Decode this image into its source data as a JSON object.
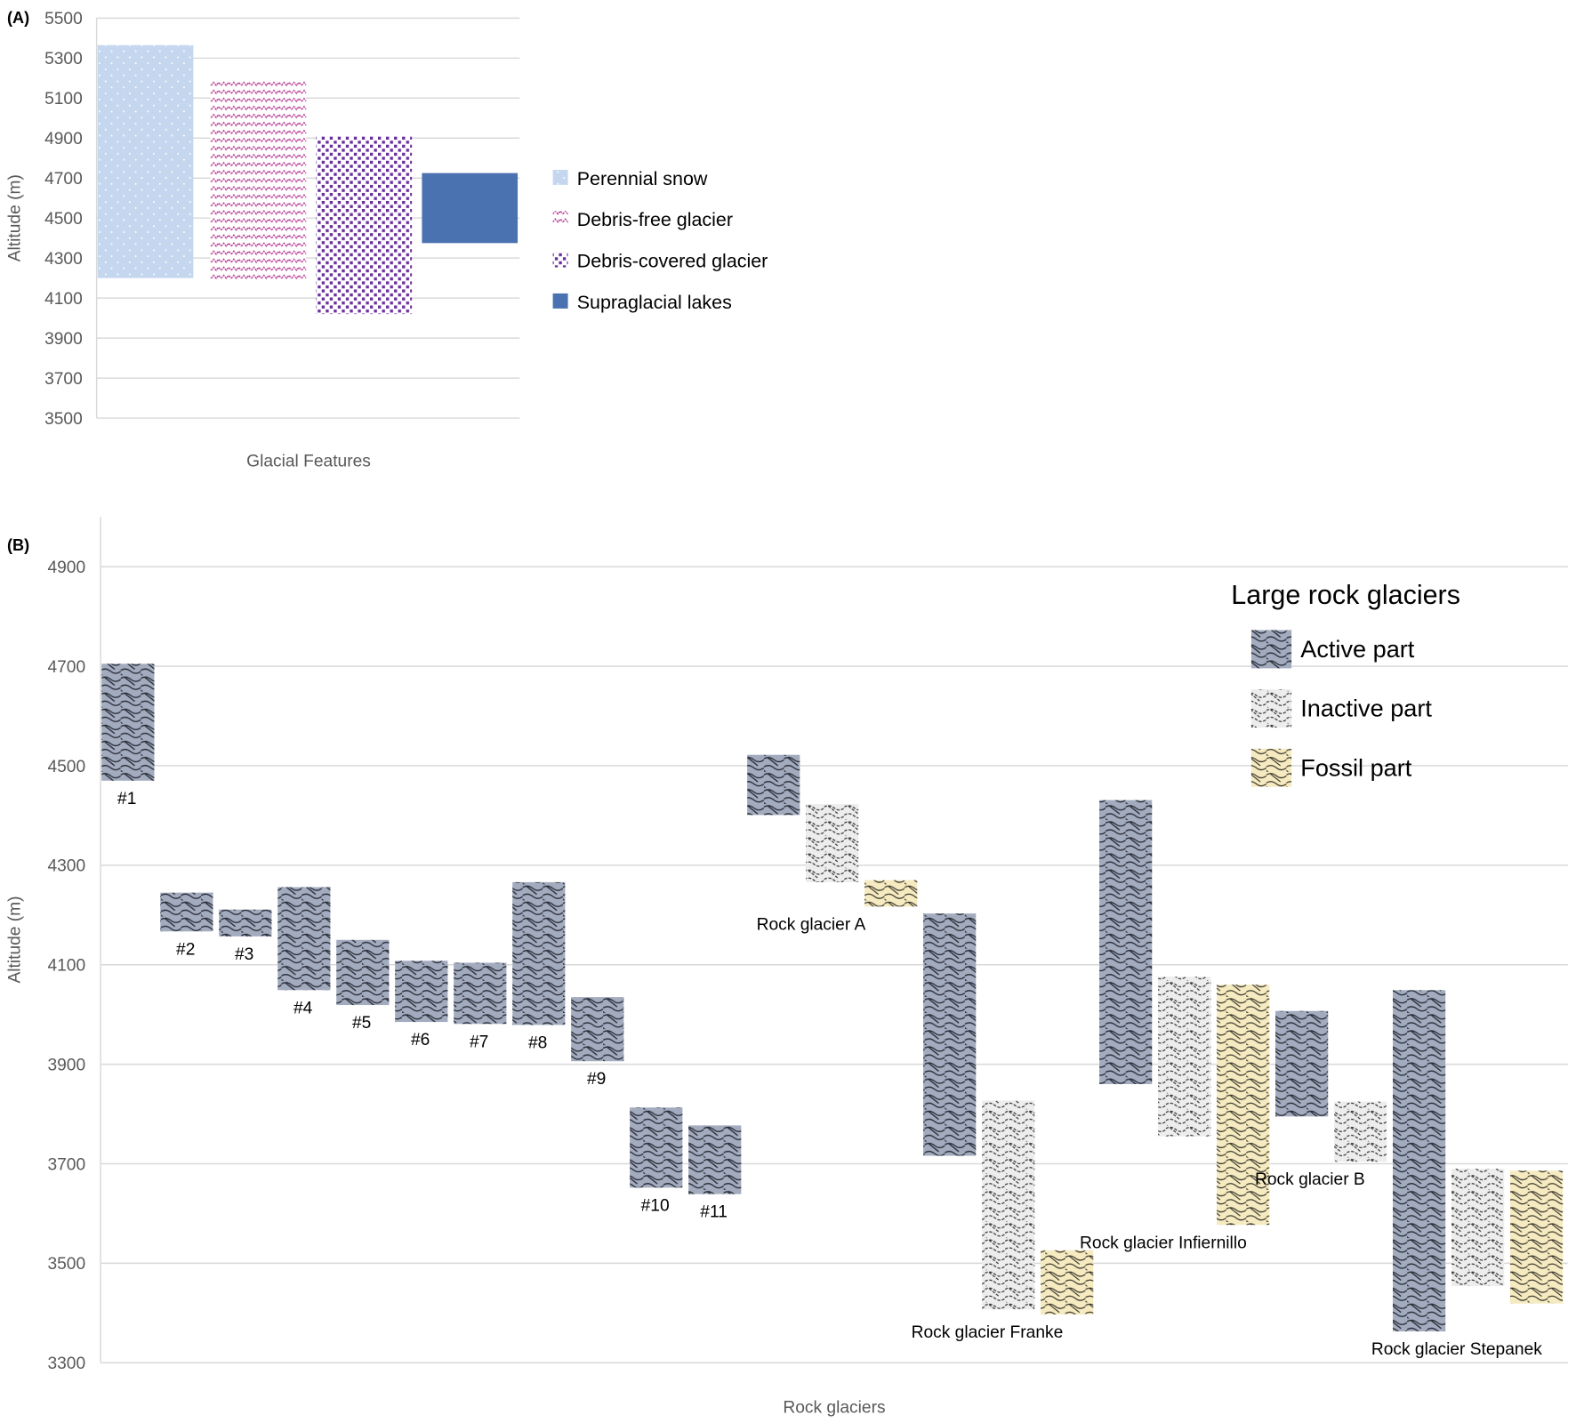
{
  "chart_data": [
    {
      "type": "bar",
      "panel_label": "(A)",
      "xlabel": "Glacial Features",
      "ylabel": "Altitude (m)",
      "ylim": [
        3500,
        5500
      ],
      "yticks": [
        3500,
        3700,
        3900,
        4100,
        4300,
        4500,
        4700,
        4900,
        5100,
        5300,
        5500
      ],
      "grid": true,
      "legend_placement": "right",
      "series": [
        {
          "name": "Perennial snow",
          "range": [
            4200,
            5365
          ],
          "color": "#c5d7ee",
          "pattern": "dots"
        },
        {
          "name": "Debris-free glacier",
          "range": [
            4190,
            5190
          ],
          "color": "#b5338f",
          "pattern": "zigzag"
        },
        {
          "name": "Debris-covered glacier",
          "range": [
            4020,
            4910
          ],
          "color": "#6a2f9e",
          "pattern": "checker-dots"
        },
        {
          "name": "Supraglacial lakes",
          "range": [
            4375,
            4725
          ],
          "color": "#4a72b0",
          "pattern": "solid"
        }
      ]
    },
    {
      "type": "bar",
      "panel_label": "(B)",
      "xlabel": "Rock glaciers",
      "ylabel": "Altitude (m)",
      "ylim": [
        3300,
        5000
      ],
      "yticks": [
        3300,
        3500,
        3700,
        3900,
        4100,
        4300,
        4500,
        4700,
        4900
      ],
      "grid": true,
      "legend_title": "Large rock glaciers",
      "legend_placement": "top-right",
      "legend": [
        {
          "name": "Active part",
          "color": "#a3abbf"
        },
        {
          "name": "Inactive part",
          "color": "#ededed"
        },
        {
          "name": "Fossil part",
          "color": "#f5eac0"
        }
      ],
      "groups": [
        {
          "label": "#1",
          "bars": [
            {
              "part": "Active part",
              "range": [
                4470,
                4705
              ]
            }
          ]
        },
        {
          "label": "#2",
          "bars": [
            {
              "part": "Active part",
              "range": [
                4167,
                4245
              ]
            }
          ]
        },
        {
          "label": "#3",
          "bars": [
            {
              "part": "Active part",
              "range": [
                4157,
                4211
              ]
            }
          ]
        },
        {
          "label": "#4",
          "bars": [
            {
              "part": "Active part",
              "range": [
                4049,
                4256
              ]
            }
          ]
        },
        {
          "label": "#5",
          "bars": [
            {
              "part": "Active part",
              "range": [
                4019,
                4150
              ]
            }
          ]
        },
        {
          "label": "#6",
          "bars": [
            {
              "part": "Active part",
              "range": [
                3985,
                4108
              ]
            }
          ]
        },
        {
          "label": "#7",
          "bars": [
            {
              "part": "Active part",
              "range": [
                3981,
                4104
              ]
            }
          ]
        },
        {
          "label": "#8",
          "bars": [
            {
              "part": "Active part",
              "range": [
                3979,
                4266
              ]
            }
          ]
        },
        {
          "label": "#9",
          "bars": [
            {
              "part": "Active part",
              "range": [
                3906,
                4035
              ]
            }
          ]
        },
        {
          "label": "#10",
          "bars": [
            {
              "part": "Active part",
              "range": [
                3652,
                3813
              ]
            }
          ]
        },
        {
          "label": "#11",
          "bars": [
            {
              "part": "Active part",
              "range": [
                3639,
                3777
              ]
            }
          ]
        },
        {
          "label": "Rock glacier A",
          "bars": [
            {
              "part": "Active part",
              "range": [
                4401,
                4522
              ]
            },
            {
              "part": "Inactive part",
              "range": [
                4266,
                4423
              ]
            },
            {
              "part": "Fossil part",
              "range": [
                4217,
                4270
              ]
            }
          ]
        },
        {
          "label": "Rock glacier Franke",
          "bars": [
            {
              "part": "Active part",
              "range": [
                3716,
                4203
              ]
            },
            {
              "part": "Inactive part",
              "range": [
                3407,
                3827
              ]
            },
            {
              "part": "Fossil part",
              "range": [
                3397,
                3526
              ]
            }
          ]
        },
        {
          "label": "Rock glacier Infiernillo",
          "bars": [
            {
              "part": "Active part",
              "range": [
                3860,
                4431
              ]
            },
            {
              "part": "Inactive part",
              "range": [
                3755,
                4076
              ]
            },
            {
              "part": "Fossil part",
              "range": [
                3577,
                4060
              ]
            }
          ]
        },
        {
          "label": "Rock glacier B",
          "bars": [
            {
              "part": "Active part",
              "range": [
                3795,
                4007
              ]
            },
            {
              "part": "Inactive part",
              "range": [
                3704,
                3825
              ]
            }
          ]
        },
        {
          "label": "Rock glacier Stepanek",
          "bars": [
            {
              "part": "Active part",
              "range": [
                3363,
                4049
              ]
            },
            {
              "part": "Inactive part",
              "range": [
                3454,
                3690
              ]
            },
            {
              "part": "Fossil part",
              "range": [
                3419,
                3686
              ]
            }
          ]
        }
      ]
    }
  ]
}
